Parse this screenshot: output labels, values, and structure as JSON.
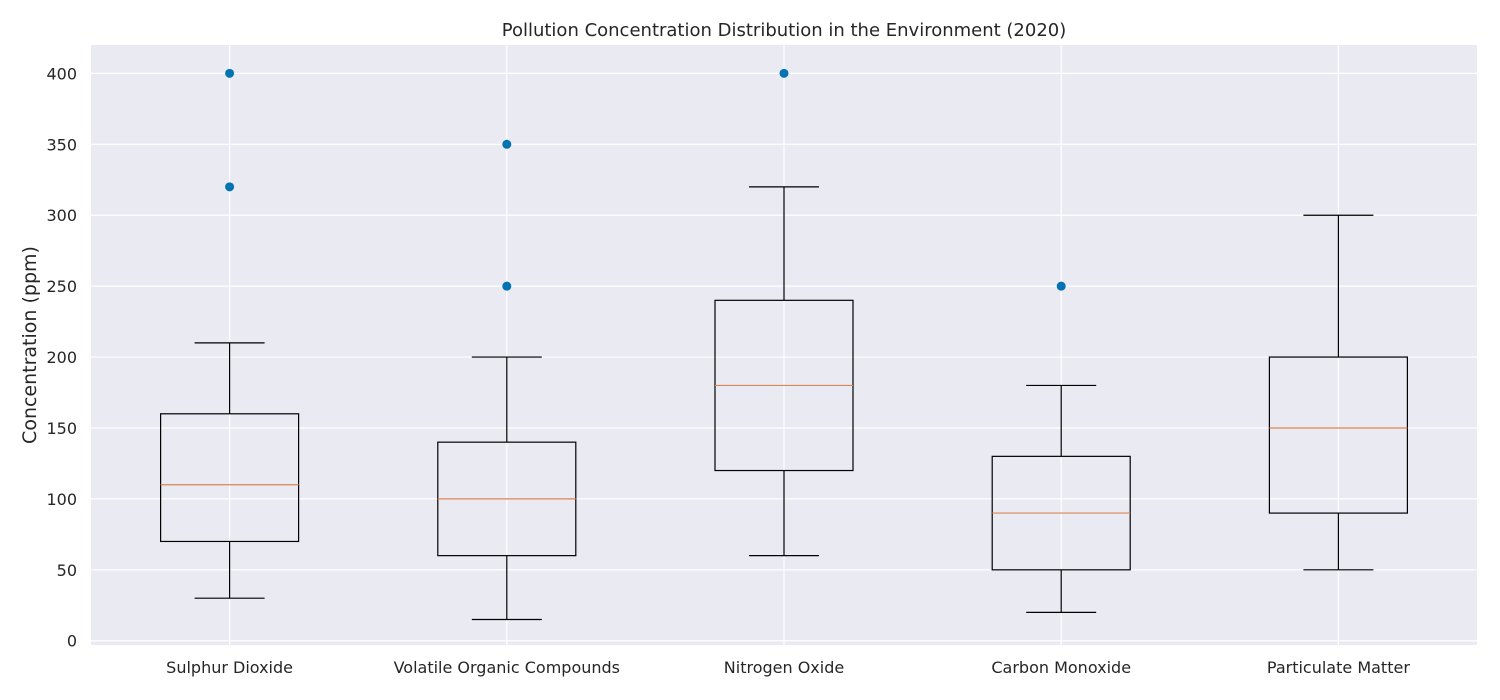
{
  "chart_data": {
    "type": "box",
    "title": "Pollution Concentration Distribution in the Environment (2020)",
    "xlabel": "",
    "ylabel": "Concentration (ppm)",
    "ylim": [
      -3,
      420
    ],
    "yticks": [
      0,
      50,
      100,
      150,
      200,
      250,
      300,
      350,
      400
    ],
    "grid": true,
    "categories": [
      "Sulphur Dioxide",
      "Volatile Organic Compounds",
      "Nitrogen Oxide",
      "Carbon Monoxide",
      "Particulate Matter"
    ],
    "boxes": [
      {
        "whisker_low": 30,
        "q1": 70,
        "median": 110,
        "q3": 160,
        "whisker_high": 210,
        "outliers": [
          320,
          400
        ]
      },
      {
        "whisker_low": 15,
        "q1": 60,
        "median": 100,
        "q3": 140,
        "whisker_high": 200,
        "outliers": [
          250,
          350
        ]
      },
      {
        "whisker_low": 60,
        "q1": 120,
        "median": 180,
        "q3": 240,
        "whisker_high": 320,
        "outliers": [
          400
        ]
      },
      {
        "whisker_low": 20,
        "q1": 50,
        "median": 90,
        "q3": 130,
        "whisker_high": 180,
        "outliers": [
          250
        ]
      },
      {
        "whisker_low": 50,
        "q1": 90,
        "median": 150,
        "q3": 200,
        "whisker_high": 300,
        "outliers": []
      }
    ],
    "colors": {
      "plot_background": "#EAEAF2",
      "grid": "#FFFFFF",
      "box": "#000000",
      "median": "#DD8452",
      "outlier": "#0173B2"
    }
  }
}
